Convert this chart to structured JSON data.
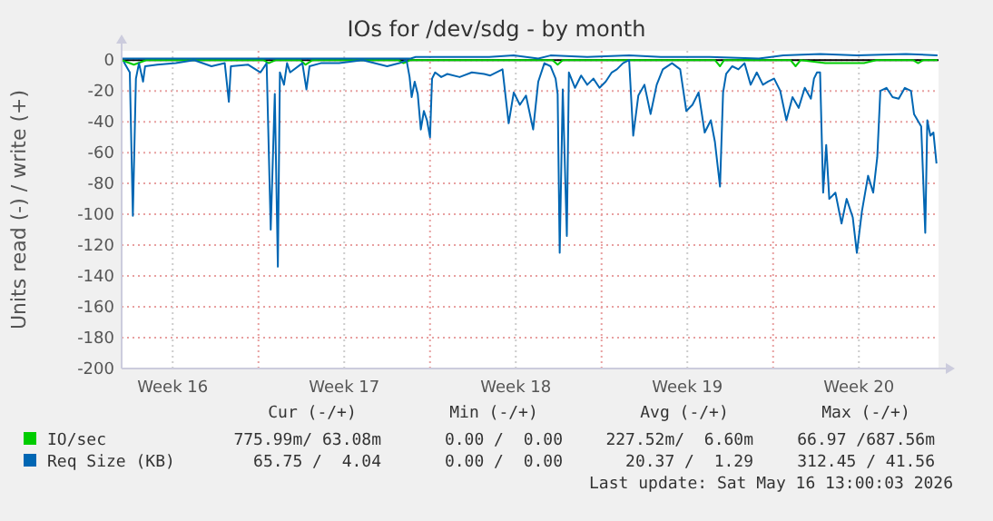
{
  "chart_data": {
    "type": "line",
    "title": "IOs for /dev/sdg - by month",
    "ylabel": "Units read (-) / write (+)",
    "xlim": [
      "2026-04-14T10:00",
      "2026-05-17T18:00"
    ],
    "ylim": [
      -200,
      6
    ],
    "xticks": [
      {
        "value": "2026-04-16T12:00",
        "label": "Week 16"
      },
      {
        "value": "2026-04-20T00:00",
        "label": null
      },
      {
        "value": "2026-04-23T12:00",
        "label": "Week 17"
      },
      {
        "value": "2026-04-27T00:00",
        "label": null
      },
      {
        "value": "2026-04-30T12:00",
        "label": "Week 18"
      },
      {
        "value": "2026-05-04T00:00",
        "label": null
      },
      {
        "value": "2026-05-07T12:00",
        "label": "Week 19"
      },
      {
        "value": "2026-05-11T00:00",
        "label": null
      },
      {
        "value": "2026-05-14T12:00",
        "label": "Week 20"
      }
    ],
    "yticks": [
      0,
      -20,
      -40,
      -60,
      -80,
      -100,
      -120,
      -140,
      -160,
      -180,
      -200
    ],
    "grid": true,
    "legend": "bottom",
    "line_style": "solid",
    "marker": "none",
    "ref_lines": [
      {
        "axis": "y",
        "value": 0,
        "color": "#000000"
      }
    ],
    "series": [
      {
        "name": "IO/sec",
        "color": "#00cc00",
        "x": [
          "2026-04-14T10:00",
          "2026-04-14T22:00",
          "2026-04-15T10:00",
          "2026-04-20T05:00",
          "2026-04-20T10:00",
          "2026-04-20T17:00",
          "2026-04-21T17:00",
          "2026-04-21T22:00",
          "2026-04-22T05:00",
          "2026-04-25T17:00",
          "2026-04-25T22:00",
          "2026-04-26T05:00",
          "2026-05-02T00:00",
          "2026-05-02T05:00",
          "2026-05-02T10:00",
          "2026-05-08T15:00",
          "2026-05-08T20:00",
          "2026-05-09T00:00",
          "2026-05-11T17:00",
          "2026-05-11T22:00",
          "2026-05-12T03:00",
          "2026-05-13T03:00",
          "2026-05-13T22:00",
          "2026-05-14T17:00",
          "2026-05-15T05:00",
          "2026-05-16T17:00",
          "2026-05-16T22:00",
          "2026-05-17T03:00",
          "2026-05-17T17:00"
        ],
        "values": [
          0,
          -3,
          0,
          0,
          -2,
          0,
          0,
          -3,
          0,
          0,
          -2,
          0,
          0,
          -3,
          0,
          0,
          -4,
          0,
          0,
          -4,
          0,
          -2,
          -2,
          -2,
          0,
          0,
          -2,
          0,
          0
        ]
      },
      {
        "name": "Req Size (KB)",
        "color": "#0066b3",
        "x": [
          "2026-04-14T12:00",
          "2026-04-14T18:00",
          "2026-04-14T21:00",
          "2026-04-15T00:00",
          "2026-04-15T03:00",
          "2026-04-15T07:00",
          "2026-04-15T09:00",
          "2026-04-15T21:00",
          "2026-04-16T15:00",
          "2026-04-17T09:00",
          "2026-04-18T02:00",
          "2026-04-18T15:00",
          "2026-04-18T19:00",
          "2026-04-18T21:00",
          "2026-04-19T14:00",
          "2026-04-20T02:00",
          "2026-04-20T08:00",
          "2026-04-20T12:00",
          "2026-04-20T16:00",
          "2026-04-20T19:00",
          "2026-04-20T21:00",
          "2026-04-21T01:00",
          "2026-04-21T04:00",
          "2026-04-21T07:00",
          "2026-04-21T19:00",
          "2026-04-21T23:00",
          "2026-04-22T02:00",
          "2026-04-22T13:00",
          "2026-04-23T07:00",
          "2026-04-24T06:00",
          "2026-04-25T06:00",
          "2026-04-25T18:00",
          "2026-04-26T01:00",
          "2026-04-26T04:00",
          "2026-04-26T06:00",
          "2026-04-26T09:00",
          "2026-04-26T12:00",
          "2026-04-26T15:00",
          "2026-04-26T18:00",
          "2026-04-26T21:00",
          "2026-04-27T00:00",
          "2026-04-27T02:00",
          "2026-04-27T05:00",
          "2026-04-27T11:00",
          "2026-04-27T17:00",
          "2026-04-28T05:00",
          "2026-04-28T17:00",
          "2026-04-29T05:00",
          "2026-04-29T11:00",
          "2026-04-29T23:00",
          "2026-04-30T05:00",
          "2026-04-30T10:00",
          "2026-04-30T16:00",
          "2026-04-30T22:00",
          "2026-05-01T05:00",
          "2026-05-01T10:00",
          "2026-05-01T16:00",
          "2026-05-01T22:00",
          "2026-05-02T03:00",
          "2026-05-02T05:00",
          "2026-05-02T07:00",
          "2026-05-02T10:00",
          "2026-05-02T14:00",
          "2026-05-02T16:00",
          "2026-05-02T22:00",
          "2026-05-03T04:00",
          "2026-05-03T10:00",
          "2026-05-03T16:00",
          "2026-05-03T22:00",
          "2026-05-04T04:00",
          "2026-05-04T10:00",
          "2026-05-04T15:00",
          "2026-05-04T21:00",
          "2026-05-05T03:00",
          "2026-05-05T07:00",
          "2026-05-05T12:00",
          "2026-05-05T18:00",
          "2026-05-06T00:00",
          "2026-05-06T06:00",
          "2026-05-06T12:00",
          "2026-05-06T21:00",
          "2026-05-07T05:00",
          "2026-05-07T11:00",
          "2026-05-07T17:00",
          "2026-05-07T23:00",
          "2026-05-08T05:00",
          "2026-05-08T11:00",
          "2026-05-08T15:00",
          "2026-05-08T20:00",
          "2026-05-08T23:00",
          "2026-05-09T02:00",
          "2026-05-09T08:00",
          "2026-05-09T14:00",
          "2026-05-09T20:00",
          "2026-05-10T02:00",
          "2026-05-10T08:00",
          "2026-05-10T14:00",
          "2026-05-10T19:00",
          "2026-05-11T01:00",
          "2026-05-11T07:00",
          "2026-05-11T13:00",
          "2026-05-11T19:00",
          "2026-05-12T01:00",
          "2026-05-12T07:00",
          "2026-05-12T13:00",
          "2026-05-12T16:00",
          "2026-05-12T19:00",
          "2026-05-12T22:00",
          "2026-05-13T01:00",
          "2026-05-13T04:00",
          "2026-05-13T07:00",
          "2026-05-13T13:00",
          "2026-05-13T19:00",
          "2026-05-14T00:00",
          "2026-05-14T06:00",
          "2026-05-14T10:00",
          "2026-05-14T15:00",
          "2026-05-14T21:00",
          "2026-05-15T02:00",
          "2026-05-15T06:00",
          "2026-05-15T09:00",
          "2026-05-15T15:00",
          "2026-05-15T21:00",
          "2026-05-16T03:00",
          "2026-05-16T09:00",
          "2026-05-16T15:00",
          "2026-05-16T18:00",
          "2026-05-17T01:00",
          "2026-05-17T05:00",
          "2026-05-17T07:00",
          "2026-05-17T10:00",
          "2026-05-17T13:00",
          "2026-05-17T16:00"
        ],
        "values": [
          -1,
          -8,
          -101,
          -12,
          -2,
          -14,
          -4,
          -3,
          -2,
          0,
          -4,
          -2,
          -27,
          -4,
          -3,
          -8,
          -2,
          -110,
          -22,
          -134,
          -8,
          -16,
          -2,
          -8,
          -2,
          -19,
          -4,
          -2,
          -2,
          0,
          -4,
          -2,
          0,
          -11,
          -24,
          -14,
          -22,
          -45,
          -33,
          -39,
          -50,
          -12,
          -8,
          -11,
          -9,
          -11,
          -8,
          -9,
          -10,
          -6,
          -41,
          -21,
          -29,
          -23,
          -45,
          -14,
          -2,
          -4,
          -12,
          -22,
          -125,
          -19,
          -114,
          -8,
          -18,
          -10,
          -16,
          -12,
          -18,
          -14,
          -8,
          -6,
          -2,
          0,
          -49,
          -23,
          -16,
          -35,
          -16,
          -6,
          -2,
          -6,
          -33,
          -29,
          -21,
          -47,
          -39,
          -53,
          -82,
          -21,
          -9,
          -4,
          -6,
          -2,
          -16,
          -8,
          -16,
          -14,
          -12,
          -20,
          -39,
          -24,
          -31,
          -18,
          -25,
          -12,
          -8,
          -8,
          -86,
          -55,
          -90,
          -86,
          -106,
          -90,
          -102,
          -125,
          -98,
          -75,
          -86,
          -63,
          -20,
          -18,
          -24,
          -25,
          -18,
          -20,
          -35,
          -43,
          -112,
          -39,
          -49,
          -47,
          -67
        ]
      },
      {
        "color": "#0066b3",
        "x": [
          "2026-04-14T10:00",
          "2026-04-26T03:00",
          "2026-04-26T05:00",
          "2026-04-26T10:00",
          "2026-04-29T10:00",
          "2026-04-30T10:00",
          "2026-05-01T10:00",
          "2026-05-01T22:00",
          "2026-05-03T10:00",
          "2026-05-05T03:00",
          "2026-05-06T10:00",
          "2026-05-08T10:00",
          "2026-05-10T10:00",
          "2026-05-11T10:00",
          "2026-05-12T22:00",
          "2026-05-14T10:00",
          "2026-05-16T10:00",
          "2026-05-17T17:00"
        ],
        "values": [
          1,
          1,
          1,
          2,
          2,
          3,
          1,
          3,
          2,
          3,
          2,
          2,
          1,
          3,
          4,
          3,
          4,
          3
        ]
      }
    ],
    "annotations": [
      "Cur (-/+)",
      "Min (-/+)",
      "Avg (-/+)",
      "Max (-/+)",
      "775.99m/ 63.08m",
      "0.00 /  0.00",
      "227.52m/  6.60m",
      "66.97 /687.56m",
      "65.75 /  4.04",
      "0.00 /  0.00",
      "20.37 /  1.29",
      "312.45 / 41.56",
      "Last update: Sat May 16 13:00:03 2026"
    ]
  }
}
